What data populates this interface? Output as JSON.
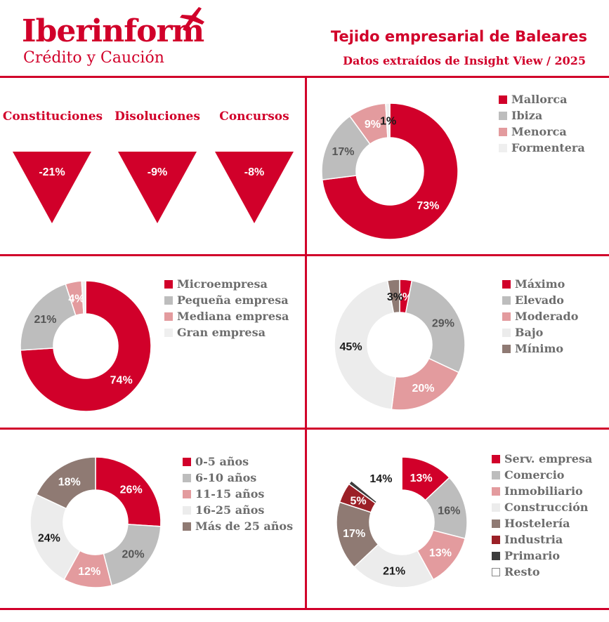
{
  "header": {
    "logo": "Iberinform",
    "logo_sub": "Crédito y Caución",
    "title": "Tejido empresarial de Baleares",
    "subtitle": "Datos extraídos de Insight View / 2025"
  },
  "colors": {
    "brand": "#d1002a"
  },
  "indicators": [
    {
      "label": "Constituciones",
      "value": "-21%"
    },
    {
      "label": "Disoluciones",
      "value": "-9%"
    },
    {
      "label": "Concursos",
      "value": "-8%"
    }
  ],
  "chart_data": [
    {
      "type": "pie",
      "categories": [
        "Mallorca",
        "Ibiza",
        "Menorca",
        "Formentera"
      ],
      "values": [
        73,
        17,
        9,
        1
      ],
      "labels": [
        "73%",
        "17%",
        "9%",
        "1%"
      ],
      "colors": [
        "#d1002a",
        "#bdbdbd",
        "#e39b9e",
        "#efefef"
      ],
      "legend": "right"
    },
    {
      "type": "pie",
      "categories": [
        "Microempresa",
        "Pequeña empresa",
        "Mediana empresa",
        "Gran empresa"
      ],
      "values": [
        74,
        21,
        4,
        1
      ],
      "labels": [
        "74%",
        "21%",
        "4%",
        ""
      ],
      "colors": [
        "#d1002a",
        "#bdbdbd",
        "#e39b9e",
        "#efefef"
      ],
      "legend": "right"
    },
    {
      "type": "pie",
      "categories": [
        "Máximo",
        "Elevado",
        "Moderado",
        "Bajo",
        "Mínimo"
      ],
      "values": [
        3,
        29,
        20,
        45,
        3
      ],
      "labels": [
        "3%",
        "29%",
        "20%",
        "45%",
        "3%"
      ],
      "colors": [
        "#d1002a",
        "#bdbdbd",
        "#e39b9e",
        "#ececec",
        "#8f7a73"
      ],
      "legend": "right"
    },
    {
      "type": "pie",
      "categories": [
        "0-5 años",
        "6-10 años",
        "11-15 años",
        "16-25 años",
        "Más de 25 años"
      ],
      "values": [
        26,
        20,
        12,
        24,
        18
      ],
      "labels": [
        "26%",
        "20%",
        "12%",
        "24%",
        "18%"
      ],
      "colors": [
        "#d1002a",
        "#bdbdbd",
        "#e39b9e",
        "#ececec",
        "#8f7a73"
      ],
      "legend": "right"
    },
    {
      "type": "pie",
      "categories": [
        "Serv. empresa",
        "Comercio",
        "Inmobiliario",
        "Construcción",
        "Hostelería",
        "Industria",
        "Primario",
        "Resto"
      ],
      "values": [
        13,
        16,
        13,
        21,
        17,
        5,
        1,
        14
      ],
      "labels": [
        "13%",
        "16%",
        "13%",
        "21%",
        "17%",
        "5%",
        "",
        "14%"
      ],
      "colors": [
        "#d1002a",
        "#bdbdbd",
        "#e39b9e",
        "#ececec",
        "#8f7a73",
        "#9b2027",
        "#3c3c3c",
        "#ffffff"
      ],
      "legend": "right"
    }
  ]
}
